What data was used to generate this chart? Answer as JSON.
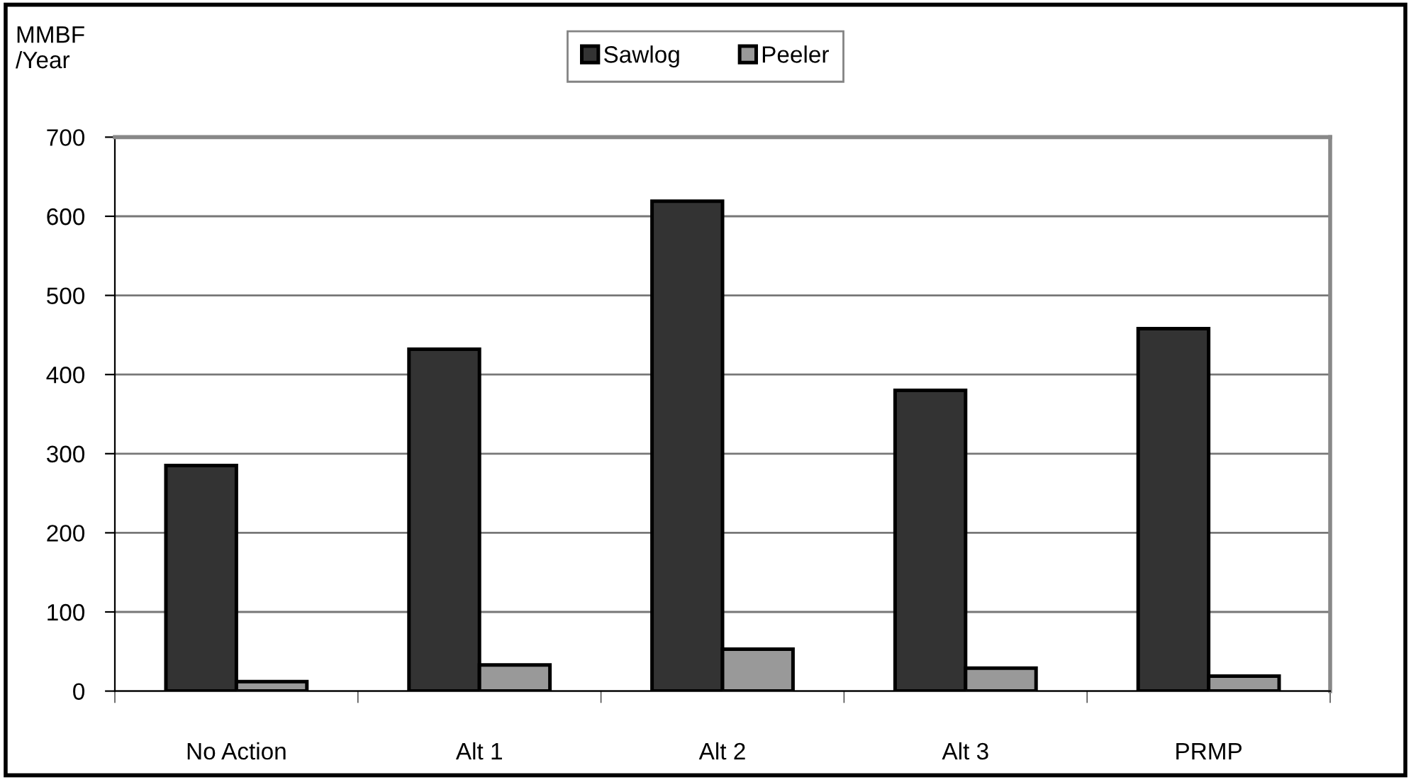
{
  "chart_data": {
    "type": "bar",
    "ylabel": "MMBF\n/Year",
    "categories": [
      "No Action",
      "Alt 1",
      "Alt 2",
      "Alt 3",
      "PRMP"
    ],
    "series": [
      {
        "name": "Sawlog",
        "color": "#333333",
        "values": [
          285,
          432,
          619,
          380,
          458
        ]
      },
      {
        "name": "Peeler",
        "color": "#999999",
        "values": [
          12,
          33,
          53,
          29,
          19
        ]
      }
    ],
    "ylim": [
      0,
      700
    ],
    "yticks": [
      0,
      100,
      200,
      300,
      400,
      500,
      600,
      700
    ],
    "grid": "y",
    "legend": "top"
  }
}
